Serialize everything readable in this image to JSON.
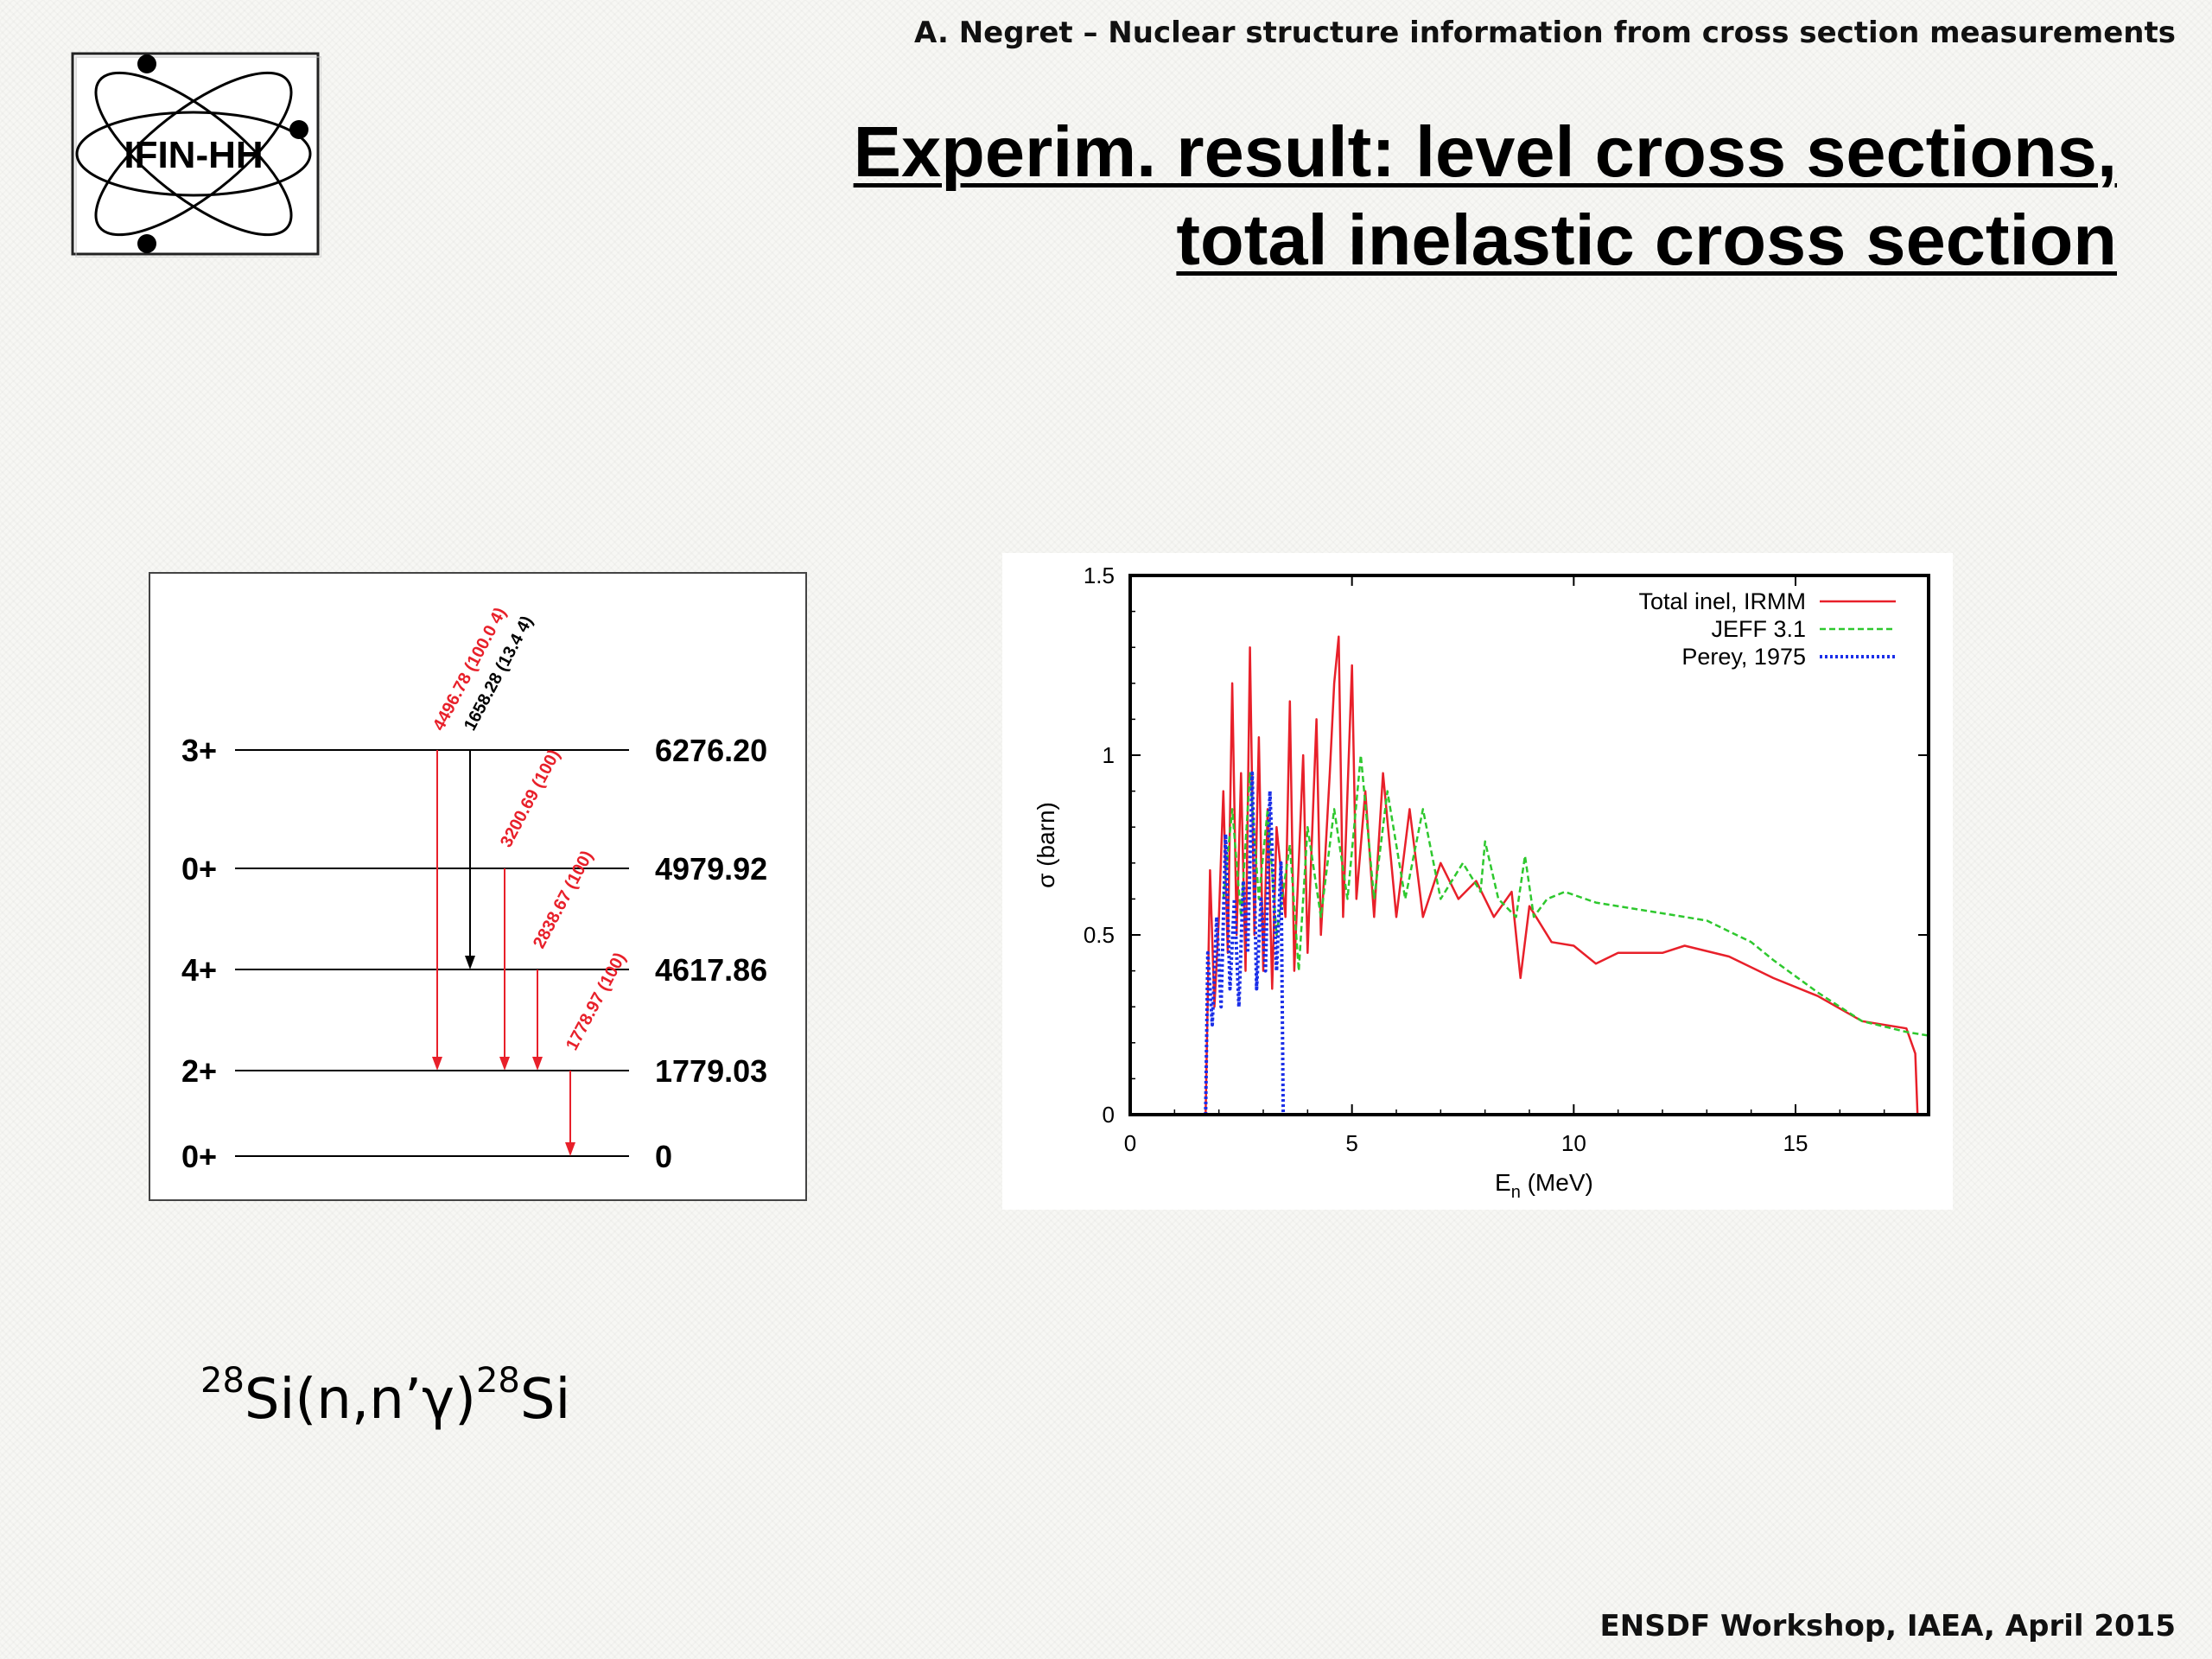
{
  "header": {
    "author_line": "A. Negret – Nuclear structure information from cross section measurements"
  },
  "title": {
    "line1": "Experim. result: level cross sections,",
    "line2": "total inelastic cross section"
  },
  "logo": {
    "text": "IFIN-HH"
  },
  "footer": {
    "text": "ENSDF Workshop, IAEA, April 2015"
  },
  "reaction": {
    "mass_a": "28",
    "body": "Si(n,n’γ)",
    "mass_b": "28",
    "tail": "Si"
  },
  "level_scheme": {
    "levels": [
      {
        "spin": "3+",
        "energy": "6276.20"
      },
      {
        "spin": "0+",
        "energy": "4979.92"
      },
      {
        "spin": "4+",
        "energy": "4617.86"
      },
      {
        "spin": "2+",
        "energy": "1779.03"
      },
      {
        "spin": "0+",
        "energy": "0"
      }
    ],
    "transitions": [
      {
        "label": "4496.78 (100.0  4)",
        "color": "#e8202a"
      },
      {
        "label": "1658.28 (13.4  4)",
        "color": "#000000"
      },
      {
        "label": "3200.69 (100)",
        "color": "#e8202a"
      },
      {
        "label": "2838.67 (100)",
        "color": "#e8202a"
      },
      {
        "label": "1778.97 (100)",
        "color": "#e8202a"
      }
    ]
  },
  "chart_data": {
    "type": "line",
    "xlabel": "E",
    "xlabel_sub": "n",
    "xlabel_unit": " (MeV)",
    "ylabel": "σ (barn)",
    "xlim": [
      0,
      18
    ],
    "ylim": [
      0,
      1.5
    ],
    "x_ticks": [
      "0",
      "5",
      "10",
      "15"
    ],
    "y_ticks": [
      "0",
      "0.5",
      "1",
      "1.5"
    ],
    "legend_position": "top-right",
    "series": [
      {
        "name": "Total inel, IRMM",
        "color": "#e8202a",
        "style": "solid",
        "points": [
          [
            1.7,
            0
          ],
          [
            1.8,
            0.68
          ],
          [
            1.9,
            0.3
          ],
          [
            2.0,
            0.55
          ],
          [
            2.1,
            0.9
          ],
          [
            2.2,
            0.45
          ],
          [
            2.3,
            1.2
          ],
          [
            2.4,
            0.5
          ],
          [
            2.5,
            0.95
          ],
          [
            2.6,
            0.4
          ],
          [
            2.7,
            1.3
          ],
          [
            2.8,
            0.5
          ],
          [
            2.9,
            1.05
          ],
          [
            3.0,
            0.4
          ],
          [
            3.1,
            0.85
          ],
          [
            3.2,
            0.35
          ],
          [
            3.3,
            0.8
          ],
          [
            3.5,
            0.55
          ],
          [
            3.6,
            1.15
          ],
          [
            3.7,
            0.4
          ],
          [
            3.9,
            1.0
          ],
          [
            4.0,
            0.45
          ],
          [
            4.2,
            1.1
          ],
          [
            4.3,
            0.5
          ],
          [
            4.5,
            0.95
          ],
          [
            4.6,
            1.2
          ],
          [
            4.7,
            1.33
          ],
          [
            4.8,
            0.55
          ],
          [
            5.0,
            1.25
          ],
          [
            5.1,
            0.6
          ],
          [
            5.3,
            0.9
          ],
          [
            5.5,
            0.55
          ],
          [
            5.7,
            0.95
          ],
          [
            6.0,
            0.55
          ],
          [
            6.3,
            0.85
          ],
          [
            6.6,
            0.55
          ],
          [
            7.0,
            0.7
          ],
          [
            7.4,
            0.6
          ],
          [
            7.8,
            0.65
          ],
          [
            8.2,
            0.55
          ],
          [
            8.6,
            0.62
          ],
          [
            8.8,
            0.38
          ],
          [
            9.0,
            0.58
          ],
          [
            9.5,
            0.48
          ],
          [
            10.0,
            0.47
          ],
          [
            10.5,
            0.42
          ],
          [
            11.0,
            0.45
          ],
          [
            12.0,
            0.45
          ],
          [
            12.5,
            0.47
          ],
          [
            13.5,
            0.44
          ],
          [
            14.5,
            0.38
          ],
          [
            15.5,
            0.33
          ],
          [
            16.5,
            0.26
          ],
          [
            17.5,
            0.24
          ],
          [
            17.7,
            0.17
          ],
          [
            17.75,
            0
          ]
        ]
      },
      {
        "name": "JEFF 3.1",
        "color": "#2ec82e",
        "style": "dashed",
        "points": [
          [
            2.1,
            0.6
          ],
          [
            2.3,
            0.85
          ],
          [
            2.5,
            0.55
          ],
          [
            2.7,
            0.95
          ],
          [
            2.9,
            0.6
          ],
          [
            3.1,
            0.85
          ],
          [
            3.3,
            0.5
          ],
          [
            3.6,
            0.75
          ],
          [
            3.8,
            0.4
          ],
          [
            4.0,
            0.8
          ],
          [
            4.3,
            0.55
          ],
          [
            4.6,
            0.85
          ],
          [
            4.9,
            0.6
          ],
          [
            5.2,
            1.0
          ],
          [
            5.5,
            0.6
          ],
          [
            5.8,
            0.9
          ],
          [
            6.2,
            0.6
          ],
          [
            6.6,
            0.85
          ],
          [
            7.0,
            0.6
          ],
          [
            7.5,
            0.7
          ],
          [
            7.9,
            0.62
          ],
          [
            8.0,
            0.76
          ],
          [
            8.3,
            0.6
          ],
          [
            8.7,
            0.55
          ],
          [
            8.9,
            0.72
          ],
          [
            9.1,
            0.55
          ],
          [
            9.4,
            0.6
          ],
          [
            9.8,
            0.62
          ],
          [
            10.5,
            0.59
          ],
          [
            12.0,
            0.56
          ],
          [
            13.0,
            0.54
          ],
          [
            14.0,
            0.48
          ],
          [
            14.5,
            0.43
          ],
          [
            15.5,
            0.34
          ],
          [
            16.5,
            0.26
          ],
          [
            17.5,
            0.23
          ],
          [
            18.0,
            0.22
          ]
        ]
      },
      {
        "name": "Perey, 1975",
        "color": "#1a2ee8",
        "style": "dotted",
        "points": [
          [
            1.7,
            0
          ],
          [
            1.75,
            0.45
          ],
          [
            1.85,
            0.25
          ],
          [
            1.95,
            0.55
          ],
          [
            2.05,
            0.3
          ],
          [
            2.15,
            0.78
          ],
          [
            2.25,
            0.35
          ],
          [
            2.35,
            0.6
          ],
          [
            2.45,
            0.3
          ],
          [
            2.55,
            0.65
          ],
          [
            2.65,
            0.45
          ],
          [
            2.75,
            0.95
          ],
          [
            2.85,
            0.35
          ],
          [
            2.95,
            0.6
          ],
          [
            3.05,
            0.4
          ],
          [
            3.15,
            0.9
          ],
          [
            3.3,
            0.4
          ],
          [
            3.4,
            0.7
          ],
          [
            3.45,
            0
          ],
          [
            3.5,
            0
          ]
        ]
      }
    ]
  }
}
